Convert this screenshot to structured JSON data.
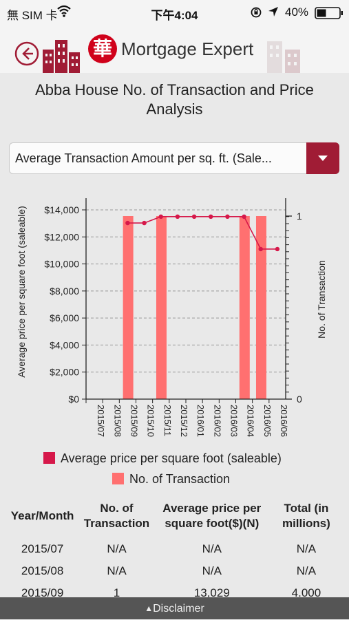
{
  "status": {
    "carrier": "無 SIM 卡",
    "time": "下午4:04",
    "battery": "40%"
  },
  "header": {
    "app_title": "Mortgage Expert",
    "logo_char": "華"
  },
  "page_title": "Abba House No. of Transaction and Price Analysis",
  "dropdown": {
    "selected": "Average Transaction Amount per sq. ft. (Sale..."
  },
  "chart_data": {
    "type": "bar+line",
    "categories": [
      "2015/07",
      "2015/08",
      "2015/09",
      "2015/10",
      "2015/11",
      "2015/12",
      "2016/01",
      "2016/02",
      "2016/03",
      "2016/04",
      "2016/05",
      "2016/06"
    ],
    "ylabel": "Average price per square foot (saleable)",
    "y2label": "No. of Transaction",
    "ylim": [
      0,
      14000
    ],
    "y2lim": [
      0,
      1
    ],
    "y_ticks": [
      "$0",
      "$2,000",
      "$4,000",
      "$6,000",
      "$8,000",
      "$10,000",
      "$12,000",
      "$14,000"
    ],
    "y2_ticks": [
      "0",
      "1"
    ],
    "grid": true,
    "series": [
      {
        "name": "Average price per square foot (saleable)",
        "type": "line",
        "color": "#d6184a",
        "values": [
          null,
          null,
          13029,
          13029,
          13500,
          13500,
          13500,
          13500,
          13500,
          13500,
          11100,
          11100
        ]
      },
      {
        "name": "No. of Transaction",
        "type": "bar",
        "color": "#ff7070",
        "values": [
          0,
          0,
          1,
          0,
          1,
          0,
          0,
          0,
          0,
          1,
          1,
          0
        ]
      }
    ]
  },
  "table": {
    "headers": [
      "Year/Month",
      "No. of Transaction",
      "Average price per square foot($)(N)",
      "Total (in millions)"
    ],
    "rows": [
      [
        "2015/07",
        "N/A",
        "N/A",
        "N/A"
      ],
      [
        "2015/08",
        "N/A",
        "N/A",
        "N/A"
      ],
      [
        "2015/09",
        "1",
        "13,029",
        "4.000"
      ]
    ]
  },
  "footer": {
    "label": "Disclaimer"
  }
}
